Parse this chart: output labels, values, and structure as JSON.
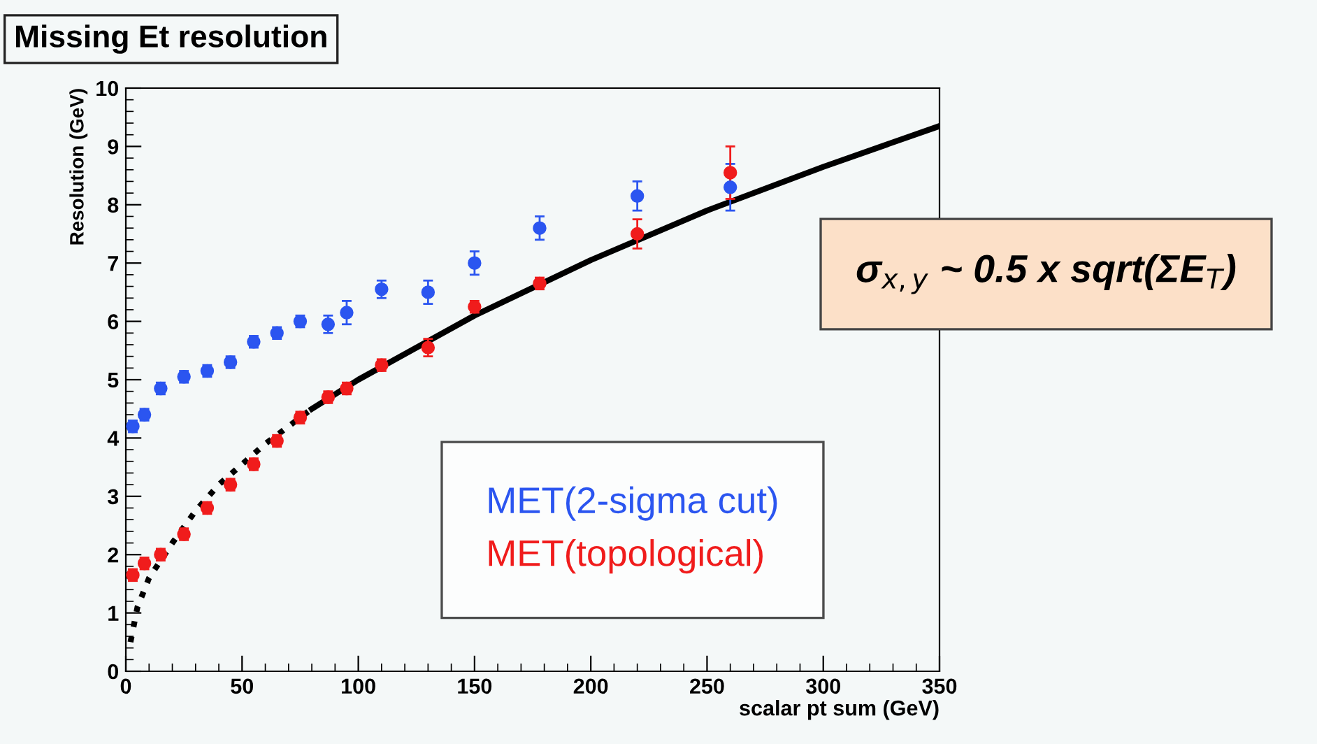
{
  "chart_data": {
    "type": "scatter",
    "title": "Missing Et resolution",
    "xlabel": "scalar pt sum (GeV)",
    "ylabel": "Resolution (GeV)",
    "xlim": [
      0,
      350
    ],
    "xticks": [
      0,
      50,
      100,
      150,
      200,
      250,
      300,
      350
    ],
    "ylim": [
      0,
      10
    ],
    "yticks": [
      0,
      1,
      2,
      3,
      4,
      5,
      6,
      7,
      8,
      9,
      10
    ],
    "grid": false,
    "legend": "bottom right",
    "marker": "circle",
    "annotations": [
      "σ$_{x,y}$ ~ 0.5 x sqrt(ΣE$_{T}$)"
    ],
    "series": [
      {
        "name": "MET(2-sigma cut)",
        "color": "#2b55f0",
        "x": [
          3,
          8,
          15,
          25,
          35,
          45,
          55,
          65,
          75,
          87,
          95,
          110,
          130,
          150,
          178,
          220,
          260
        ],
        "values": [
          4.2,
          4.4,
          4.85,
          5.05,
          5.15,
          5.3,
          5.65,
          5.8,
          6.0,
          5.95,
          6.15,
          6.55,
          6.5,
          7.0,
          7.6,
          8.15,
          8.3
        ],
        "errors": [
          0.1,
          0.1,
          0.1,
          0.1,
          0.1,
          0.1,
          0.1,
          0.1,
          0.1,
          0.15,
          0.2,
          0.15,
          0.2,
          0.2,
          0.2,
          0.25,
          0.4
        ]
      },
      {
        "name": "MET(topological)",
        "color": "#f01c1c",
        "x": [
          3,
          8,
          15,
          25,
          35,
          45,
          55,
          65,
          75,
          87,
          95,
          110,
          130,
          150,
          178,
          220,
          260
        ],
        "values": [
          1.65,
          1.85,
          2.0,
          2.35,
          2.8,
          3.2,
          3.55,
          3.95,
          4.35,
          4.7,
          4.85,
          5.25,
          5.55,
          6.25,
          6.65,
          7.5,
          8.55
        ],
        "errors": [
          0.1,
          0.1,
          0.1,
          0.1,
          0.1,
          0.1,
          0.1,
          0.1,
          0.1,
          0.1,
          0.1,
          0.1,
          0.15,
          0.1,
          0.1,
          0.25,
          0.45
        ]
      },
      {
        "type": "line",
        "color": "#000000",
        "line_style": "dotted",
        "marker": "none",
        "x": [
          2,
          5,
          10,
          20,
          30,
          40,
          50,
          60,
          70,
          80
        ],
        "values": [
          0.5,
          1.1,
          1.6,
          2.2,
          2.75,
          3.2,
          3.55,
          3.9,
          4.2,
          4.5
        ]
      },
      {
        "type": "line",
        "color": "#000000",
        "line_style": "solid",
        "marker": "none",
        "x": [
          80,
          100,
          150,
          200,
          250,
          300,
          350
        ],
        "values": [
          4.5,
          5.0,
          6.1,
          7.05,
          7.9,
          8.65,
          9.35
        ]
      }
    ]
  }
}
